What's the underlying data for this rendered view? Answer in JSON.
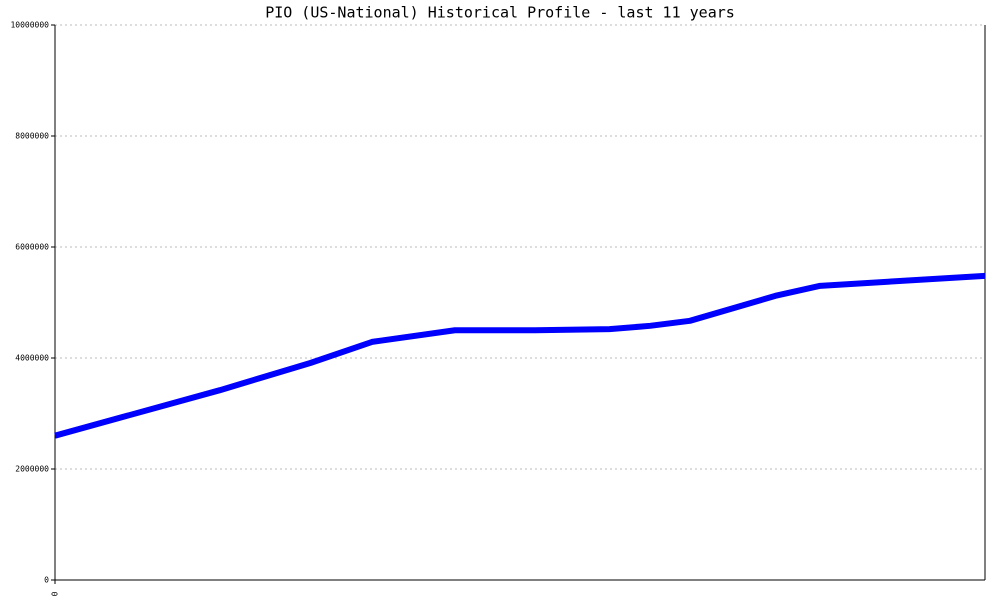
{
  "chart_data": {
    "type": "line",
    "title": "PIO (US-National) Historical Profile - last 11 years",
    "x": [
      0,
      1.95,
      3.02,
      3.75,
      4.73,
      5.68,
      6.56,
      7.04,
      7.51,
      8.52,
      9.05,
      11
    ],
    "series": [
      {
        "color": "#0000ff",
        "values": [
          2600000,
          3420000,
          3910000,
          4290000,
          4500000,
          4500000,
          4520000,
          4580000,
          4670000,
          5120000,
          5300000,
          5480000
        ]
      }
    ],
    "xlim": [
      0,
      11
    ],
    "xticks": [
      0
    ],
    "ylim": [
      0,
      10000000
    ],
    "yticks": [
      0,
      2000000,
      4000000,
      6000000,
      8000000,
      10000000
    ],
    "grid": true
  }
}
